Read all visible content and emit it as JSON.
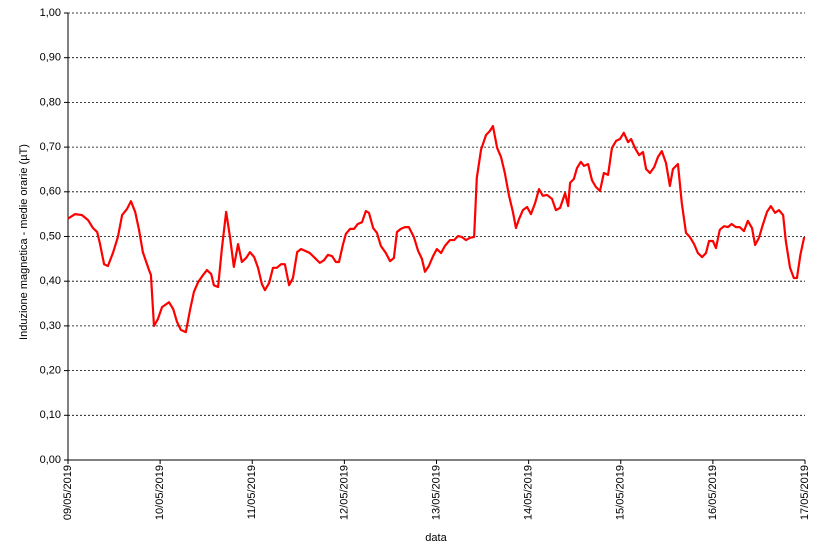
{
  "chart_data": {
    "type": "line",
    "x_label": "data",
    "y_label": "Induzione magnetica - medie orarie (µT)",
    "color": "#ff0000",
    "grid": true,
    "xlim": [
      0,
      192
    ],
    "xticks": [
      {
        "value": 0,
        "label": "09/05/2019"
      },
      {
        "value": 24,
        "label": "10/05/2019"
      },
      {
        "value": 48,
        "label": "11/05/2019"
      },
      {
        "value": 72,
        "label": "12/05/2019"
      },
      {
        "value": 96,
        "label": "13/05/2019"
      },
      {
        "value": 120,
        "label": "14/05/2019"
      },
      {
        "value": 144,
        "label": "15/05/2019"
      },
      {
        "value": 168,
        "label": "16/05/2019"
      },
      {
        "value": 192,
        "label": "17/05/2019"
      }
    ],
    "ylim": [
      0,
      1
    ],
    "yticks": [
      {
        "value": 0,
        "label": "0,00"
      },
      {
        "value": 0.1,
        "label": "0,10"
      },
      {
        "value": 0.2,
        "label": "0,20"
      },
      {
        "value": 0.3,
        "label": "0,30"
      },
      {
        "value": 0.4,
        "label": "0,40"
      },
      {
        "value": 0.5,
        "label": "0,50"
      },
      {
        "value": 0.6,
        "label": "0,60"
      },
      {
        "value": 0.7,
        "label": "0,70"
      },
      {
        "value": 0.8,
        "label": "0,80"
      },
      {
        "value": 0.9,
        "label": "0,90"
      },
      {
        "value": 1,
        "label": "1,00"
      }
    ],
    "x": [
      0,
      1.8,
      3.6,
      5.2,
      6.5,
      7.6,
      8.3,
      9.4,
      10.4,
      11.7,
      13.0,
      14.1,
      15.4,
      16.4,
      17.5,
      18.5,
      19.5,
      21.1,
      21.6,
      22.4,
      23.4,
      24.5,
      26.3,
      27.4,
      28.4,
      29.4,
      30.7,
      31.8,
      32.8,
      33.9,
      35.2,
      36.2,
      37.3,
      38.0,
      39.1,
      40.1,
      41.2,
      42.2,
      43.2,
      44.3,
      45.3,
      46.4,
      47.4,
      48.5,
      49.5,
      50.5,
      51.3,
      52.4,
      53.4,
      54.4,
      55.5,
      56.5,
      57.6,
      58.6,
      59.7,
      60.7,
      61.7,
      63.0,
      64.3,
      65.6,
      66.7,
      67.7,
      68.8,
      69.8,
      70.6,
      71.6,
      72.4,
      73.5,
      74.5,
      75.5,
      76.6,
      77.6,
      78.4,
      79.5,
      80.5,
      81.5,
      82.8,
      83.9,
      84.9,
      85.7,
      86.7,
      87.8,
      88.8,
      90.1,
      91.2,
      92.2,
      93.0,
      94.0,
      95.1,
      96.1,
      97.2,
      98.2,
      99.5,
      100.6,
      101.6,
      102.6,
      103.7,
      104.7,
      105.8,
      106.5,
      107.6,
      108.9,
      109.9,
      110.7,
      111.8,
      112.8,
      113.8,
      114.9,
      115.9,
      116.7,
      117.5,
      118.5,
      119.6,
      120.6,
      121.7,
      122.7,
      123.7,
      124.8,
      126.1,
      127.1,
      128.2,
      129.5,
      130.3,
      130.8,
      131.8,
      132.6,
      133.6,
      134.4,
      135.5,
      136.5,
      137.5,
      138.6,
      139.6,
      140.7,
      141.7,
      142.8,
      143.8,
      144.8,
      145.9,
      146.7,
      147.7,
      148.8,
      149.8,
      150.6,
      151.6,
      152.7,
      153.7,
      154.7,
      155.8,
      156.8,
      157.6,
      158.9,
      159.9,
      161.0,
      162.0,
      163.1,
      164.1,
      165.2,
      166.2,
      167.0,
      168.0,
      168.8,
      169.8,
      170.9,
      171.9,
      172.9,
      174.0,
      175.0,
      176.1,
      177.1,
      178.2,
      179.0,
      180.0,
      181.0,
      182.1,
      183.1,
      184.2,
      185.2,
      186.3,
      187.0,
      188.1,
      189.1,
      189.9,
      190.8,
      191.8
    ],
    "values": [
      0.54,
      0.55,
      0.548,
      0.537,
      0.519,
      0.51,
      0.485,
      0.438,
      0.434,
      0.463,
      0.499,
      0.548,
      0.562,
      0.579,
      0.555,
      0.515,
      0.465,
      0.425,
      0.414,
      0.3,
      0.315,
      0.342,
      0.353,
      0.338,
      0.309,
      0.291,
      0.286,
      0.336,
      0.376,
      0.398,
      0.414,
      0.425,
      0.416,
      0.391,
      0.387,
      0.474,
      0.555,
      0.499,
      0.432,
      0.483,
      0.443,
      0.452,
      0.465,
      0.454,
      0.43,
      0.394,
      0.38,
      0.396,
      0.43,
      0.43,
      0.438,
      0.438,
      0.391,
      0.407,
      0.465,
      0.472,
      0.468,
      0.463,
      0.452,
      0.441,
      0.447,
      0.459,
      0.456,
      0.443,
      0.443,
      0.481,
      0.506,
      0.517,
      0.517,
      0.528,
      0.532,
      0.557,
      0.553,
      0.519,
      0.508,
      0.479,
      0.463,
      0.445,
      0.452,
      0.51,
      0.517,
      0.521,
      0.521,
      0.499,
      0.468,
      0.45,
      0.421,
      0.434,
      0.456,
      0.472,
      0.463,
      0.479,
      0.492,
      0.492,
      0.501,
      0.499,
      0.492,
      0.497,
      0.499,
      0.631,
      0.694,
      0.727,
      0.736,
      0.747,
      0.698,
      0.678,
      0.642,
      0.591,
      0.555,
      0.519,
      0.539,
      0.559,
      0.566,
      0.55,
      0.575,
      0.606,
      0.591,
      0.593,
      0.584,
      0.559,
      0.564,
      0.597,
      0.568,
      0.62,
      0.629,
      0.653,
      0.667,
      0.658,
      0.662,
      0.626,
      0.611,
      0.602,
      0.642,
      0.638,
      0.698,
      0.714,
      0.718,
      0.732,
      0.711,
      0.718,
      0.698,
      0.682,
      0.689,
      0.651,
      0.642,
      0.655,
      0.678,
      0.691,
      0.664,
      0.613,
      0.651,
      0.662,
      0.575,
      0.508,
      0.499,
      0.483,
      0.463,
      0.454,
      0.463,
      0.49,
      0.49,
      0.474,
      0.515,
      0.523,
      0.521,
      0.528,
      0.521,
      0.521,
      0.512,
      0.535,
      0.519,
      0.481,
      0.497,
      0.526,
      0.555,
      0.568,
      0.553,
      0.559,
      0.548,
      0.49,
      0.43,
      0.407,
      0.407,
      0.459,
      0.499
    ]
  }
}
